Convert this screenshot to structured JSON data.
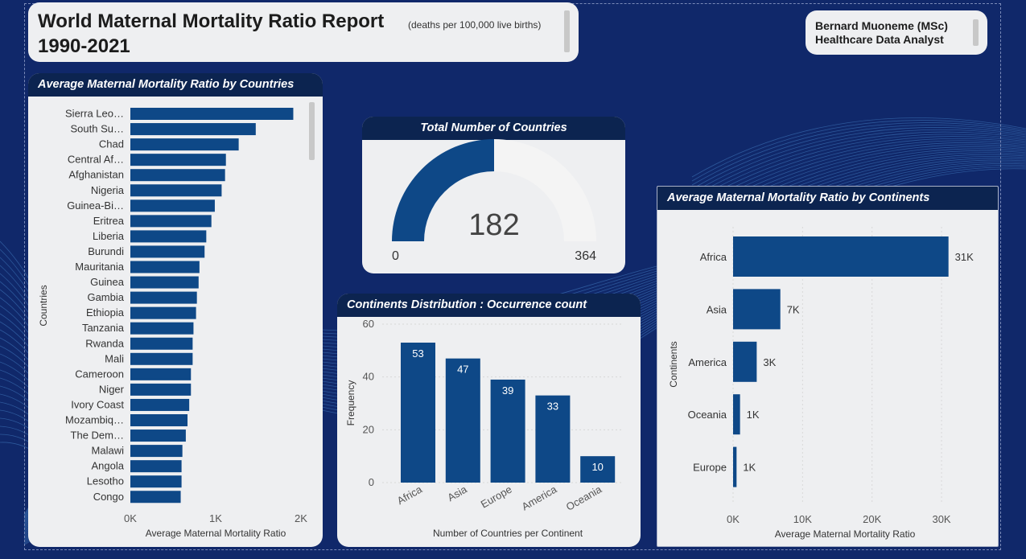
{
  "header": {
    "title": "World Maternal Mortality Ratio Report",
    "subtitle": "(deaths per 100,000 live births)",
    "years": "1990-2021"
  },
  "author": {
    "name": "Bernard Muoneme (MSc)",
    "role": "Healthcare Data Analyst"
  },
  "colors": {
    "bar": "#0e4887",
    "header_bg": "#0c2450",
    "page_bg": "#10286a",
    "gauge_empty": "#f4f4f4"
  },
  "chart_data": [
    {
      "type": "bar",
      "orientation": "horizontal",
      "title": "Average Maternal Mortality Ratio by Countries",
      "xlabel": "Average Maternal Mortality Ratio",
      "ylabel": "Countries",
      "categories": [
        "Sierra Leo…",
        "South Su…",
        "Chad",
        "Central Af…",
        "Afghanistan",
        "Nigeria",
        "Guinea-Bi…",
        "Eritrea",
        "Liberia",
        "Burundi",
        "Mauritania",
        "Guinea",
        "Gambia",
        "Ethiopia",
        "Tanzania",
        "Rwanda",
        "Mali",
        "Cameroon",
        "Niger",
        "Ivory Coast",
        "Mozambiq…",
        "The Dem…",
        "Malawi",
        "Angola",
        "Lesotho",
        "Congo"
      ],
      "values": [
        1910,
        1470,
        1270,
        1120,
        1110,
        1070,
        990,
        950,
        890,
        870,
        810,
        800,
        780,
        770,
        740,
        730,
        730,
        710,
        710,
        690,
        670,
        650,
        610,
        600,
        600,
        590
      ],
      "xticks": [
        "0K",
        "1K",
        "2K"
      ],
      "xlim": [
        0,
        2000
      ]
    },
    {
      "type": "gauge",
      "title": "Total Number of Countries",
      "value": 182,
      "min": 0,
      "max": 364,
      "value_label": "182",
      "min_label": "0",
      "max_label": "364"
    },
    {
      "type": "bar",
      "title": "Continents Distribution : Occurrence count",
      "xlabel": "Number of Countries per Continent",
      "ylabel": "Frequency",
      "categories": [
        "Africa",
        "Asia",
        "Europe",
        "America",
        "Oceania"
      ],
      "values": [
        53,
        47,
        39,
        33,
        10
      ],
      "data_labels": [
        "53",
        "47",
        "39",
        "33",
        "10"
      ],
      "yticks": [
        "0",
        "20",
        "40",
        "60"
      ],
      "ylim": [
        0,
        60
      ],
      "grid": true
    },
    {
      "type": "bar",
      "orientation": "horizontal",
      "title": "Average Maternal Mortality Ratio by Continents",
      "xlabel": "Average Maternal Mortality Ratio",
      "ylabel": "Continents",
      "categories": [
        "Africa",
        "Asia",
        "America",
        "Oceania",
        "Europe"
      ],
      "values": [
        31000,
        6800,
        3400,
        1000,
        500
      ],
      "data_labels": [
        "31K",
        "7K",
        "3K",
        "1K",
        "1K"
      ],
      "xticks": [
        "0K",
        "10K",
        "20K",
        "30K"
      ],
      "xlim": [
        0,
        31500
      ],
      "grid": true
    }
  ]
}
